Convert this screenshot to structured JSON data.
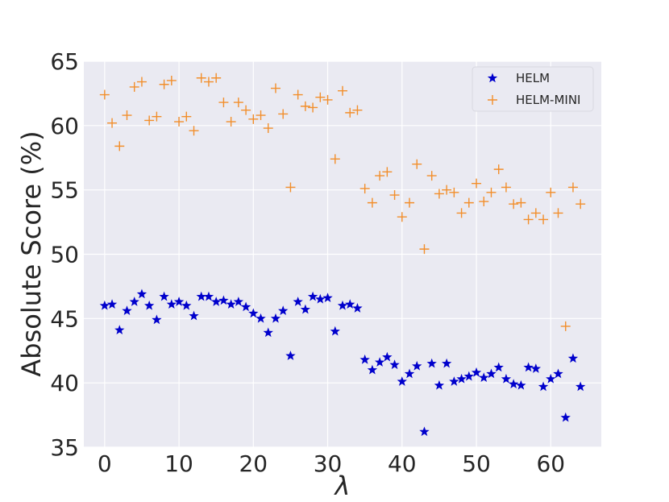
{
  "chart_data": {
    "type": "scatter",
    "xlabel": "λ",
    "ylabel": "Absolute Score (%)",
    "xlim": [
      -2.8,
      66.8
    ],
    "ylim": [
      35,
      65
    ],
    "xticks": [
      0,
      10,
      20,
      30,
      40,
      50,
      60
    ],
    "yticks": [
      35,
      40,
      45,
      50,
      55,
      60,
      65
    ],
    "grid": true,
    "legend_position": "top-right",
    "series": [
      {
        "name": "HELM",
        "marker": "star",
        "color": "#0000cc",
        "x": [
          0,
          1,
          2,
          3,
          4,
          5,
          6,
          7,
          8,
          9,
          10,
          11,
          12,
          13,
          14,
          15,
          16,
          17,
          18,
          19,
          20,
          21,
          22,
          23,
          24,
          25,
          26,
          27,
          28,
          29,
          30,
          31,
          32,
          33,
          34,
          35,
          36,
          37,
          38,
          39,
          40,
          41,
          42,
          43,
          44,
          45,
          46,
          47,
          48,
          49,
          50,
          51,
          52,
          53,
          54,
          55,
          56,
          57,
          58,
          59,
          60,
          61,
          62,
          63,
          64
        ],
        "y": [
          46.0,
          46.1,
          44.1,
          45.6,
          46.3,
          46.9,
          46.0,
          44.9,
          46.7,
          46.1,
          46.3,
          46.0,
          45.2,
          46.7,
          46.7,
          46.3,
          46.4,
          46.1,
          46.3,
          45.9,
          45.4,
          45.0,
          43.9,
          45.0,
          45.6,
          42.1,
          46.3,
          45.7,
          46.7,
          46.5,
          46.6,
          44.0,
          46.0,
          46.1,
          45.8,
          41.8,
          41.0,
          41.6,
          42.0,
          41.4,
          40.1,
          40.7,
          41.3,
          36.2,
          41.5,
          39.8,
          41.5,
          40.1,
          40.3,
          40.5,
          40.8,
          40.4,
          40.7,
          41.2,
          40.3,
          39.9,
          39.8,
          41.2,
          41.1,
          39.7,
          40.3,
          40.7,
          37.3,
          41.9,
          39.7
        ]
      },
      {
        "name": "HELM-MINI",
        "marker": "plus",
        "color": "#f28e2b",
        "x": [
          0,
          1,
          2,
          3,
          4,
          5,
          6,
          7,
          8,
          9,
          10,
          11,
          12,
          13,
          14,
          15,
          16,
          17,
          18,
          19,
          20,
          21,
          22,
          23,
          24,
          25,
          26,
          27,
          28,
          29,
          30,
          31,
          32,
          33,
          34,
          35,
          36,
          37,
          38,
          39,
          40,
          41,
          42,
          43,
          44,
          45,
          46,
          47,
          48,
          49,
          50,
          51,
          52,
          53,
          54,
          55,
          56,
          57,
          58,
          59,
          60,
          61,
          62,
          63,
          64
        ],
        "y": [
          62.4,
          60.2,
          58.4,
          60.8,
          63.0,
          63.4,
          60.4,
          60.7,
          63.2,
          63.5,
          60.3,
          60.7,
          59.6,
          63.7,
          63.4,
          63.7,
          61.8,
          60.3,
          61.8,
          61.2,
          60.5,
          60.8,
          59.8,
          62.9,
          60.9,
          55.2,
          62.4,
          61.5,
          61.4,
          62.2,
          62.0,
          57.4,
          62.7,
          61.0,
          61.2,
          55.1,
          54.0,
          56.1,
          56.4,
          54.6,
          52.9,
          54.0,
          57.0,
          50.4,
          56.1,
          54.7,
          55.0,
          54.8,
          53.2,
          54.0,
          55.5,
          54.1,
          54.8,
          56.6,
          55.2,
          53.9,
          54.0,
          52.7,
          53.2,
          52.7,
          54.8,
          53.2,
          44.4,
          55.2,
          53.9
        ]
      }
    ]
  }
}
